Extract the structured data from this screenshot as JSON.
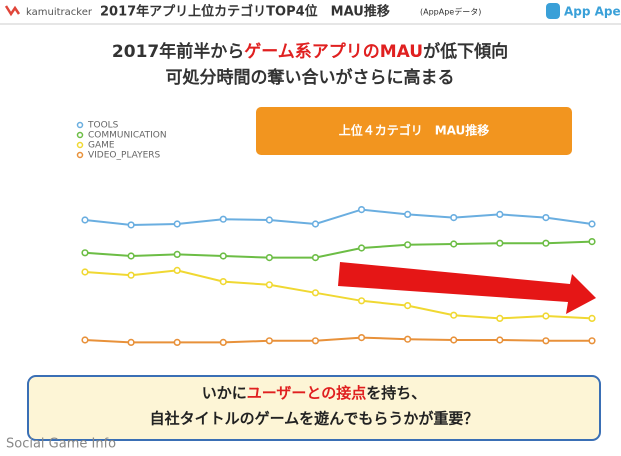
{
  "header": {
    "logo": "kamuitracker",
    "title": "2017年アプリ上位カテゴリTOP4位　MAU推移",
    "source": "(AppApeデータ)",
    "brand": "App Ape"
  },
  "headline": {
    "line1": [
      "2017年前半から",
      "ゲーム系アプリのMAU",
      "が低下傾向"
    ],
    "line2": "可処分時間の奪い合いがさらに高まる"
  },
  "chart_data": {
    "type": "line",
    "title": "上位４カテゴリ　MAU推移",
    "categories": [
      null,
      null,
      null,
      null,
      null,
      null,
      null,
      null,
      null,
      null,
      null,
      null
    ],
    "ylim": [
      0,
      100
    ],
    "series": [
      {
        "name": "TOOLS",
        "color": "#6aaee0",
        "values": [
          87.5,
          84.4,
          85,
          88,
          87.5,
          85,
          94,
          91,
          89,
          91,
          89,
          85
        ]
      },
      {
        "name": "COMMUNICATION",
        "color": "#6cbd45",
        "values": [
          67,
          65,
          66,
          65,
          64,
          64,
          70,
          72,
          72.5,
          73,
          73,
          74
        ]
      },
      {
        "name": "GAME",
        "color": "#f0d832",
        "values": [
          55,
          53,
          56,
          49,
          47,
          42,
          37,
          34,
          28,
          26,
          27.5,
          26
        ]
      },
      {
        "name": "VIDEO_PLAYERS",
        "color": "#e8913a",
        "values": [
          12.5,
          11,
          11,
          11,
          12,
          12,
          14,
          13,
          12.5,
          12.5,
          12,
          12
        ]
      }
    ]
  },
  "footer": {
    "line1": [
      "いかに",
      "ユーザーとの接点",
      "を持ち、"
    ],
    "line2": "自社タイトルのゲームを遊んでもらうかが重要？"
  },
  "watermark": "Social Game Info"
}
